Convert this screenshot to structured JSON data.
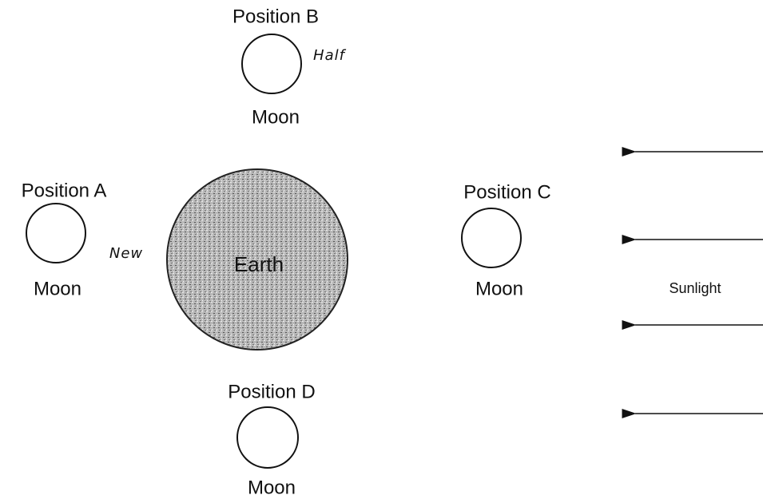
{
  "positions": [
    {
      "label": "Position A",
      "body": "Moon",
      "note": "New"
    },
    {
      "label": "Position B",
      "body": "Moon",
      "note": "Half"
    },
    {
      "label": "Position C",
      "body": "Moon"
    },
    {
      "label": "Position D",
      "body": "Moon"
    }
  ],
  "earth": {
    "label": "Earth"
  },
  "sunlight": {
    "label": "Sunlight"
  }
}
